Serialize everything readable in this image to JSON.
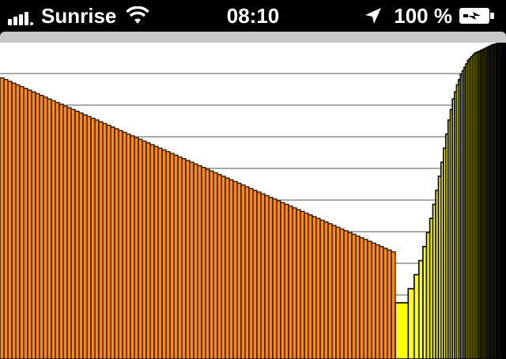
{
  "status_bar": {
    "carrier": "Sunrise",
    "time": "08:10",
    "battery_percent": "100 %",
    "icons": [
      "signal-bars-icon",
      "wifi-icon",
      "location-arrow-icon",
      "battery-charging-icon"
    ],
    "signal_bars": 4
  },
  "colors": {
    "orange": "#ff8c00",
    "yellow": "#ffff00",
    "black": "#000000",
    "gridline": "#aaaaaa",
    "toolbar": "#c8c8c8"
  },
  "chart_data": {
    "type": "bar",
    "ylim": [
      0,
      9
    ],
    "gridlines": 8,
    "grid": true,
    "series": [
      {
        "values": [
          8.0,
          7.95,
          7.9,
          7.85,
          7.8,
          7.75,
          7.7,
          7.65,
          7.6,
          7.55,
          7.5,
          7.45,
          7.4,
          7.35,
          7.3,
          7.25,
          7.2,
          7.15,
          7.1,
          7.05,
          7.0,
          6.95,
          6.9,
          6.85,
          6.8,
          6.75,
          6.7,
          6.65,
          6.6,
          6.55,
          6.5,
          6.45,
          6.4,
          6.35,
          6.3,
          6.25,
          6.2,
          6.15,
          6.1,
          6.05,
          6.0,
          5.95,
          5.9,
          5.85,
          5.8,
          5.75,
          5.7,
          5.65,
          5.6,
          5.55,
          5.5,
          5.45,
          5.4,
          5.35,
          5.3,
          5.25,
          5.2,
          5.15,
          5.1,
          5.05,
          5.0,
          4.95,
          4.9,
          4.85,
          4.8,
          4.75,
          4.7,
          4.65,
          4.6,
          4.55,
          4.5,
          4.45,
          4.4,
          4.35,
          4.3,
          4.25,
          4.2,
          4.15,
          4.1,
          4.05,
          4.0,
          3.95,
          3.9,
          3.85,
          3.8,
          3.75,
          3.7,
          3.65,
          3.6,
          3.55,
          3.5,
          3.45,
          3.4,
          3.35,
          3.3,
          3.25,
          3.2,
          3.15,
          3.1,
          3.05
        ],
        "color": "#ff8c00"
      },
      {
        "values": [
          1.6,
          2.0,
          2.4,
          2.8,
          3.2,
          3.6,
          4.0,
          4.4,
          4.8,
          5.2,
          5.6,
          6.0,
          6.4,
          6.8,
          7.1,
          7.4,
          7.6,
          7.8,
          7.95,
          8.1,
          8.2,
          8.3,
          8.4,
          8.5,
          8.55,
          8.6,
          8.65,
          8.7,
          8.72,
          8.74,
          8.76,
          8.78,
          8.8,
          8.82,
          8.84,
          8.86,
          8.88,
          8.9,
          8.92,
          8.94,
          8.95,
          8.96,
          8.97,
          8.98,
          8.99,
          9.0,
          9.0,
          9.0,
          9.0,
          9.0
        ],
        "color": "#ffff00"
      }
    ]
  }
}
